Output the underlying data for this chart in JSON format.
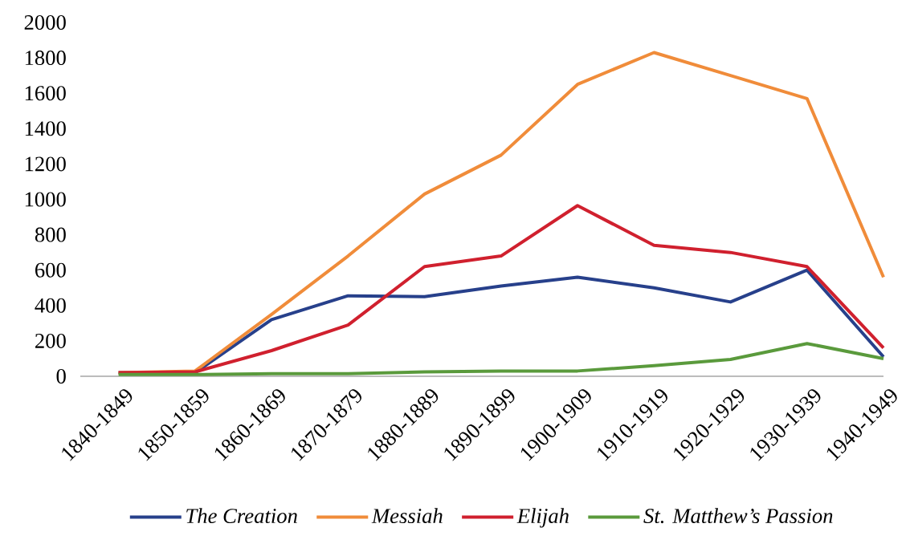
{
  "chart_data": {
    "type": "line",
    "categories": [
      "1840-1849",
      "1850-1859",
      "1860-1869",
      "1870-1879",
      "1880-1889",
      "1890-1899",
      "1900-1909",
      "1910-1919",
      "1920-1929",
      "1930-1939",
      "1940-1949"
    ],
    "series": [
      {
        "name": "The Creation",
        "color": "#27408b",
        "values": [
          20,
          20,
          320,
          455,
          450,
          510,
          560,
          500,
          420,
          600,
          110
        ]
      },
      {
        "name": "Messiah",
        "color": "#f08c3a",
        "values": [
          20,
          30,
          350,
          680,
          1030,
          1250,
          1650,
          1830,
          1700,
          1570,
          560
        ]
      },
      {
        "name": "Elijah",
        "color": "#d0202e",
        "values": [
          20,
          25,
          145,
          290,
          620,
          680,
          965,
          740,
          700,
          620,
          160
        ]
      },
      {
        "name": "St. Matthew’s Passion",
        "color": "#5a9a3c",
        "values": [
          10,
          10,
          15,
          15,
          25,
          30,
          30,
          60,
          95,
          185,
          100
        ]
      }
    ],
    "ylim": [
      0,
      2000
    ],
    "yticks": [
      0,
      200,
      400,
      600,
      800,
      1000,
      1200,
      1400,
      1600,
      1800,
      2000
    ],
    "grid": false,
    "legend": "bottom",
    "marker": "none",
    "line_style": "solid"
  }
}
